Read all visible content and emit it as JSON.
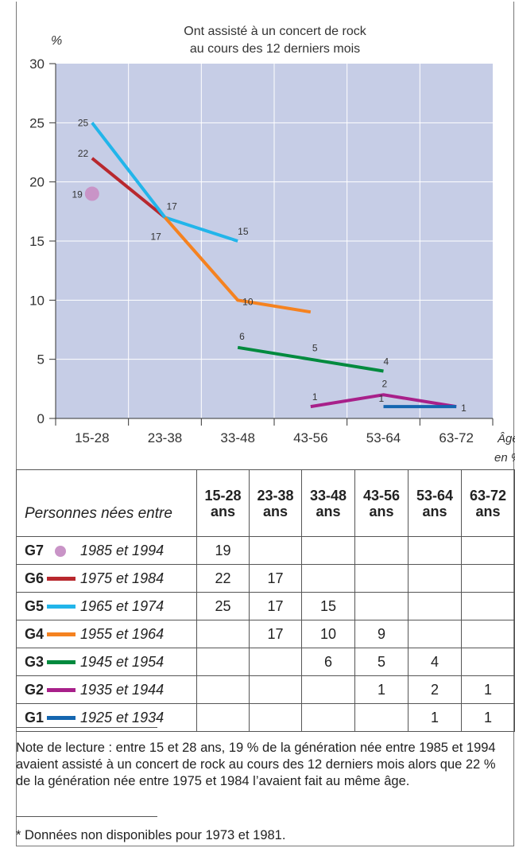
{
  "colors": {
    "background": "#c6cde6",
    "g7": "#c994c7",
    "g6": "#b8282e",
    "g5": "#22b5ea",
    "g4": "#f58220",
    "g3": "#008a3e",
    "g2": "#a8208a",
    "g1": "#1466b0"
  },
  "chart_data": {
    "type": "line",
    "title": "Ont assisté à un concert de rock au cours des 12 derniers mois",
    "title_lines": [
      "Ont assisté à un concert de rock",
      "au cours des 12 derniers mois"
    ],
    "ylabel": "%",
    "xlabel_lines": [
      "Âge",
      "en %"
    ],
    "categories": [
      "15-28",
      "23-38",
      "33-48",
      "43-56",
      "53-64",
      "63-72"
    ],
    "ylim": [
      0,
      30
    ],
    "yticks": [
      0,
      5,
      10,
      15,
      20,
      25,
      30
    ],
    "grid": true,
    "series": [
      {
        "name": "G7",
        "color_key": "g7",
        "marker_only": true,
        "values": [
          19,
          null,
          null,
          null,
          null,
          null
        ]
      },
      {
        "name": "G6",
        "color_key": "g6",
        "values": [
          22,
          17,
          null,
          null,
          null,
          null
        ]
      },
      {
        "name": "G5",
        "color_key": "g5",
        "values": [
          25,
          17,
          15,
          null,
          null,
          null
        ]
      },
      {
        "name": "G4",
        "color_key": "g4",
        "values": [
          null,
          17,
          10,
          9,
          null,
          null
        ]
      },
      {
        "name": "G3",
        "color_key": "g3",
        "values": [
          null,
          null,
          6,
          5,
          4,
          null
        ]
      },
      {
        "name": "G2",
        "color_key": "g2",
        "values": [
          null,
          null,
          null,
          1,
          2,
          1
        ]
      },
      {
        "name": "G1",
        "color_key": "g1",
        "values": [
          null,
          null,
          null,
          null,
          1,
          1
        ]
      }
    ]
  },
  "table": {
    "header_label": "Personnes nées entre",
    "columns": [
      {
        "age": "15-28",
        "unit": "ans"
      },
      {
        "age": "23-38",
        "unit": "ans"
      },
      {
        "age": "33-48",
        "unit": "ans"
      },
      {
        "age": "43-56",
        "unit": "ans"
      },
      {
        "age": "53-64",
        "unit": "ans"
      },
      {
        "age": "63-72",
        "unit": "ans"
      }
    ],
    "rows": [
      {
        "code": "G7",
        "years": "1985 et 1994",
        "color_key": "g7",
        "marker": "dot",
        "values": [
          "19",
          "",
          "",
          "",
          "",
          ""
        ]
      },
      {
        "code": "G6",
        "years": "1975 et 1984",
        "color_key": "g6",
        "marker": "line",
        "values": [
          "22",
          "17",
          "",
          "",
          "",
          ""
        ]
      },
      {
        "code": "G5",
        "years": "1965 et 1974",
        "color_key": "g5",
        "marker": "line",
        "values": [
          "25",
          "17",
          "15",
          "",
          "",
          ""
        ]
      },
      {
        "code": "G4",
        "years": "1955 et 1964",
        "color_key": "g4",
        "marker": "line",
        "values": [
          "",
          "17",
          "10",
          "9",
          "",
          ""
        ]
      },
      {
        "code": "G3",
        "years": "1945 et 1954",
        "color_key": "g3",
        "marker": "line",
        "values": [
          "",
          "",
          "6",
          "5",
          "4",
          ""
        ]
      },
      {
        "code": "G2",
        "years": "1935 et 1944",
        "color_key": "g2",
        "marker": "line",
        "values": [
          "",
          "",
          "",
          "1",
          "2",
          "1"
        ]
      },
      {
        "code": "G1",
        "years": "1925 et 1934",
        "color_key": "g1",
        "marker": "line",
        "values": [
          "",
          "",
          "",
          "",
          "1",
          "1"
        ]
      }
    ]
  },
  "note": "Note de lecture : entre 15 et 28 ans, 19 % de la génération née entre 1985 et 1994 avaient assisté à un concert de rock au cours des 12 derniers mois alors que 22 % de la génération née entre 1975 et 1984 l’avaient fait au même âge.",
  "footnote": "* Données non disponibles pour 1973 et 1981."
}
